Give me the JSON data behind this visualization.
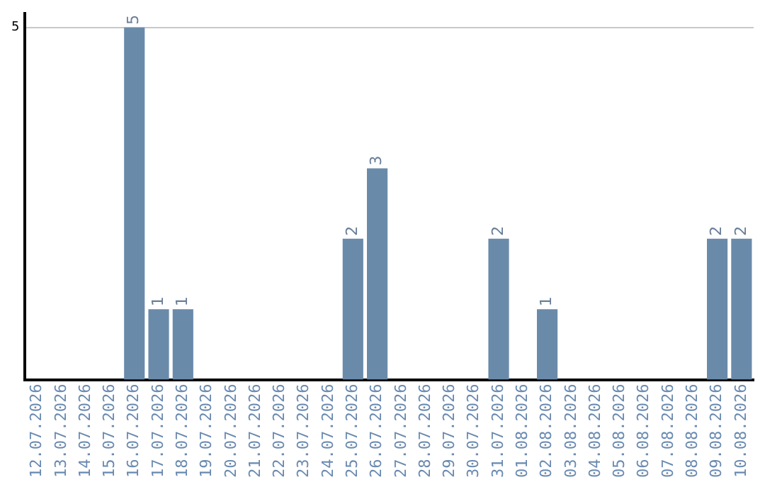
{
  "chart_data": {
    "type": "bar",
    "categories": [
      "12.07.2026",
      "13.07.2026",
      "14.07.2026",
      "15.07.2026",
      "16.07.2026",
      "17.07.2026",
      "18.07.2026",
      "19.07.2026",
      "20.07.2026",
      "21.07.2026",
      "22.07.2026",
      "23.07.2026",
      "24.07.2026",
      "25.07.2026",
      "26.07.2026",
      "27.07.2026",
      "28.07.2026",
      "29.07.2026",
      "30.07.2026",
      "31.07.2026",
      "01.08.2026",
      "02.08.2026",
      "03.08.2026",
      "04.08.2026",
      "05.08.2026",
      "06.08.2026",
      "07.08.2026",
      "08.08.2026",
      "09.08.2026",
      "10.08.2026"
    ],
    "values": [
      0,
      0,
      0,
      0,
      5,
      1,
      1,
      0,
      0,
      0,
      0,
      0,
      0,
      2,
      3,
      0,
      0,
      0,
      0,
      2,
      0,
      1,
      0,
      0,
      0,
      0,
      0,
      0,
      2,
      2
    ],
    "value_labels": [
      null,
      null,
      null,
      null,
      "5",
      "1",
      "1",
      null,
      null,
      null,
      null,
      null,
      null,
      "2",
      "3",
      null,
      null,
      null,
      null,
      "2",
      null,
      "1",
      null,
      null,
      null,
      null,
      null,
      null,
      "2",
      "2"
    ],
    "color": "#6a8aaa",
    "ylim": [
      0,
      5.2
    ],
    "yticks": [
      5
    ],
    "grid": "y",
    "legend": false
  }
}
